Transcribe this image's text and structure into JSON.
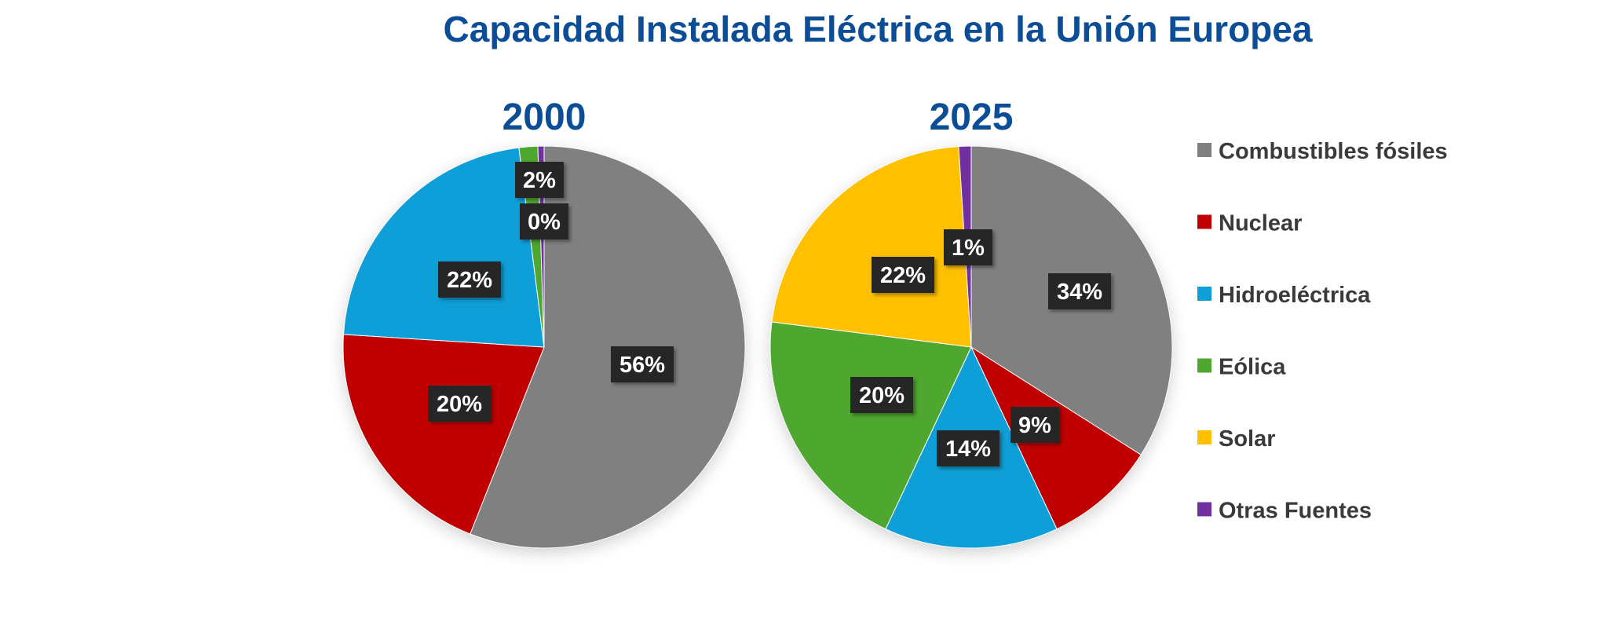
{
  "chart_data": {
    "type": "pie",
    "title": "Capacidad Instalada Eléctrica en la Unión Europea",
    "categories": [
      "Combustibles fósiles",
      "Nuclear",
      "Hidroeléctrica",
      "Eólica",
      "Solar",
      "Otras Fuentes"
    ],
    "colors": [
      "#808080",
      "#c00000",
      "#0e9fd8",
      "#4ea72e",
      "#ffc000",
      "#7030a0"
    ],
    "legend_position": "right",
    "pies": [
      {
        "name": "2000",
        "title": "2000",
        "values": [
          56,
          20,
          22,
          1.5,
          0,
          0.5
        ],
        "labels": [
          "56%",
          "20%",
          "22%",
          "2%",
          "0%",
          "0%"
        ],
        "shown_labels": [
          true,
          true,
          true,
          true,
          true,
          false
        ]
      },
      {
        "name": "2025",
        "title": "2025",
        "values": [
          34,
          9,
          14,
          20,
          22,
          1
        ],
        "labels": [
          "34%",
          "9%",
          "14%",
          "20%",
          "22%",
          "1%"
        ],
        "shown_labels": [
          true,
          true,
          true,
          true,
          true,
          true
        ]
      }
    ]
  }
}
